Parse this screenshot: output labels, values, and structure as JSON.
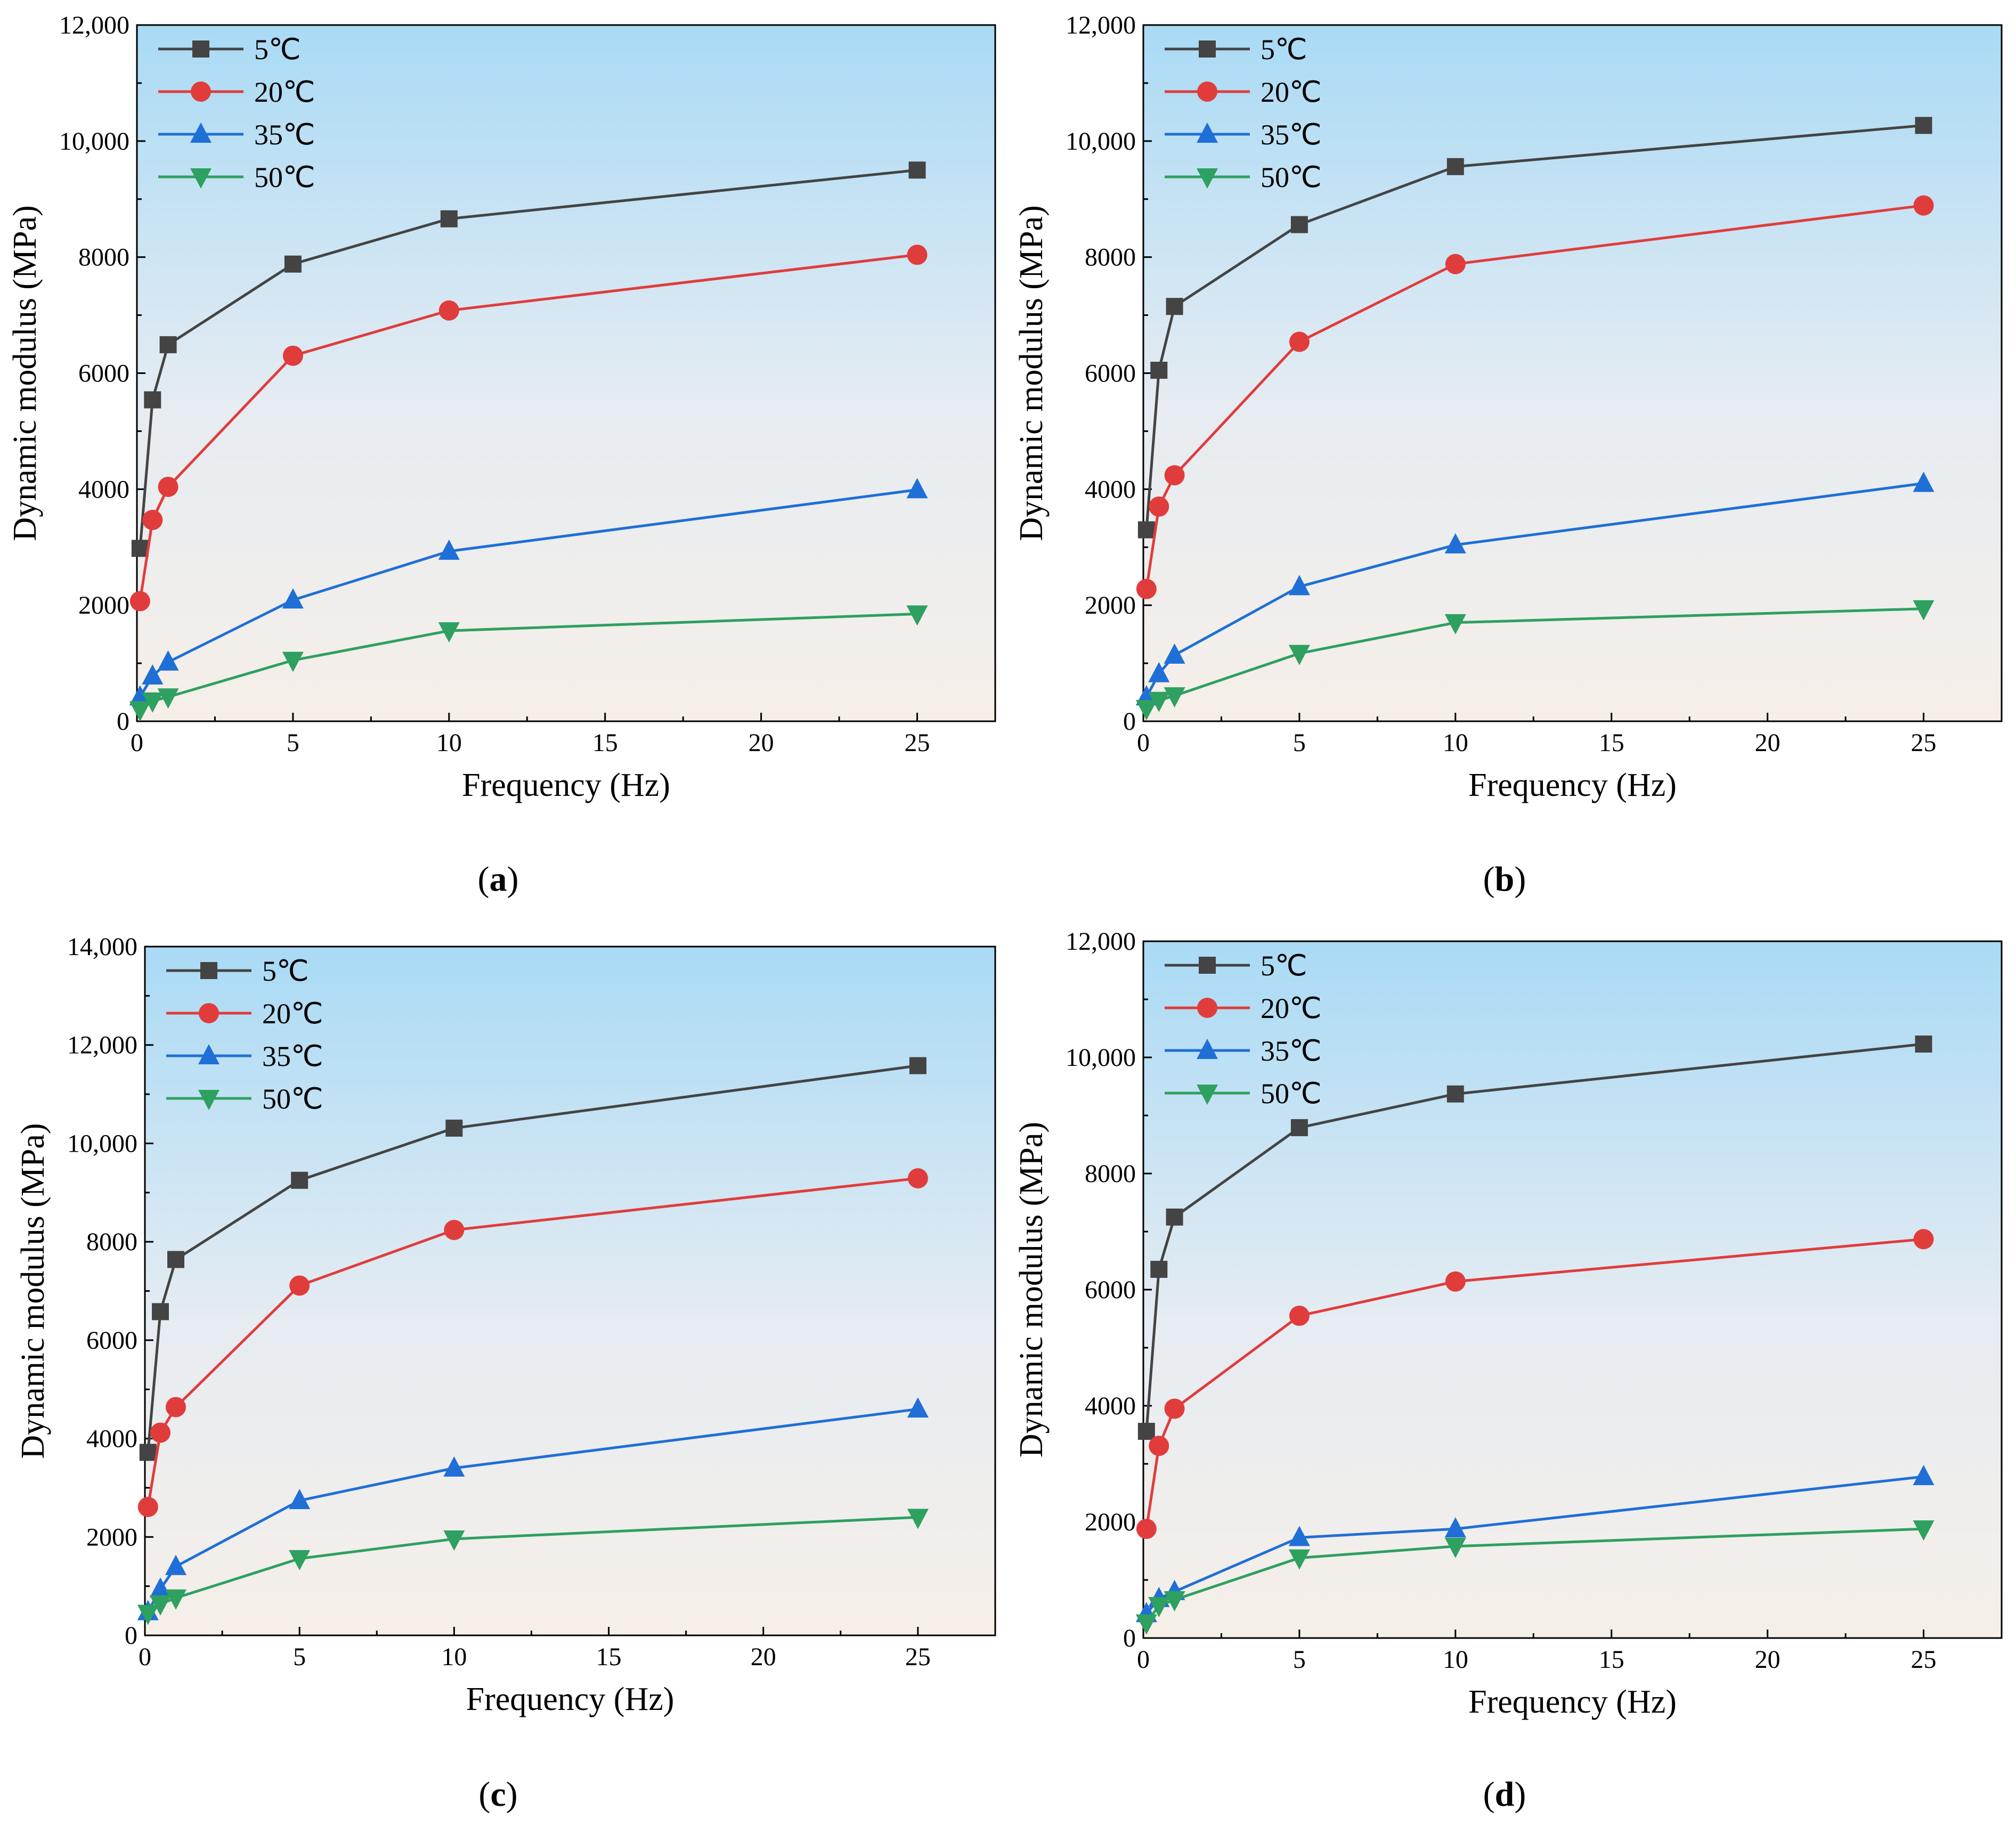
{
  "colors": {
    "5": "#444444",
    "20": "#e03c3c",
    "35": "#1f6fd6",
    "50": "#2ea060",
    "bg_top": "#a9daf5",
    "bg_bottom": "#f6efe8"
  },
  "chart_data": [
    {
      "panel": "a",
      "panel_label_open": "(",
      "panel_label_letter": "a",
      "panel_label_close": ")",
      "type": "line",
      "xlabel": "Frequency (Hz)",
      "ylabel": "Dynamic modulus (MPa)",
      "xlim": [
        0,
        27.5
      ],
      "ylim": [
        0,
        12000
      ],
      "xticks": [
        0,
        5,
        10,
        15,
        20,
        25
      ],
      "xtick_labels": [
        "0",
        "5",
        "10",
        "15",
        "20",
        "25"
      ],
      "yticks": [
        0,
        2000,
        4000,
        6000,
        8000,
        10000,
        12000
      ],
      "ytick_labels": [
        "0",
        "2000",
        "4000",
        "6000",
        "8000",
        "10,000",
        "12,000"
      ],
      "x": [
        0.1,
        0.5,
        1,
        5,
        10,
        25
      ],
      "series": [
        {
          "name": "5℃",
          "key": "5",
          "marker": "square",
          "values": [
            2980,
            5540,
            6490,
            7880,
            8660,
            9500
          ]
        },
        {
          "name": "20℃",
          "key": "20",
          "marker": "circle",
          "values": [
            2070,
            3470,
            4040,
            6300,
            7080,
            8040
          ]
        },
        {
          "name": "35℃",
          "key": "35",
          "marker": "triangle-up",
          "values": [
            420,
            780,
            1020,
            2090,
            2930,
            3990
          ]
        },
        {
          "name": "50℃",
          "key": "50",
          "marker": "triangle-down",
          "values": [
            200,
            350,
            420,
            1050,
            1560,
            1850
          ]
        }
      ]
    },
    {
      "panel": "b",
      "panel_label_open": "(",
      "panel_label_letter": "b",
      "panel_label_close": ")",
      "type": "line",
      "xlabel": "Frequency (Hz)",
      "ylabel": "Dynamic modulus (MPa)",
      "xlim": [
        0,
        27.5
      ],
      "ylim": [
        0,
        12000
      ],
      "xticks": [
        0,
        5,
        10,
        15,
        20,
        25
      ],
      "xtick_labels": [
        "0",
        "5",
        "10",
        "15",
        "20",
        "25"
      ],
      "yticks": [
        0,
        2000,
        4000,
        6000,
        8000,
        10000,
        12000
      ],
      "ytick_labels": [
        "0",
        "2000",
        "4000",
        "6000",
        "8000",
        "10,000",
        "12,000"
      ],
      "x": [
        0.1,
        0.5,
        1,
        5,
        10,
        25
      ],
      "series": [
        {
          "name": "5℃",
          "key": "5",
          "marker": "square",
          "values": [
            3300,
            6050,
            7150,
            8560,
            9560,
            10270
          ]
        },
        {
          "name": "20℃",
          "key": "20",
          "marker": "circle",
          "values": [
            2280,
            3700,
            4240,
            6540,
            7880,
            8890
          ]
        },
        {
          "name": "35℃",
          "key": "35",
          "marker": "triangle-up",
          "values": [
            420,
            820,
            1140,
            2320,
            3040,
            4100
          ]
        },
        {
          "name": "50℃",
          "key": "50",
          "marker": "triangle-down",
          "values": [
            220,
            360,
            440,
            1170,
            1700,
            1940
          ]
        }
      ]
    },
    {
      "panel": "c",
      "panel_label_open": "(",
      "panel_label_letter": "c",
      "panel_label_close": ")",
      "type": "line",
      "xlabel": "Frequency (Hz)",
      "ylabel": "Dynamic modulus (MPa)",
      "xlim": [
        0,
        27.5
      ],
      "ylim": [
        0,
        14000
      ],
      "xticks": [
        0,
        5,
        10,
        15,
        20,
        25
      ],
      "xtick_labels": [
        "0",
        "5",
        "10",
        "15",
        "20",
        "25"
      ],
      "yticks": [
        0,
        2000,
        4000,
        6000,
        8000,
        10000,
        12000,
        14000
      ],
      "ytick_labels": [
        "0",
        "2000",
        "4000",
        "6000",
        "8000",
        "10,000",
        "12,000",
        "14,000"
      ],
      "x": [
        0.1,
        0.5,
        1,
        5,
        10,
        25
      ],
      "series": [
        {
          "name": "5℃",
          "key": "5",
          "marker": "square",
          "values": [
            3720,
            6580,
            7640,
            9250,
            10310,
            11580
          ]
        },
        {
          "name": "20℃",
          "key": "20",
          "marker": "circle",
          "values": [
            2610,
            4120,
            4640,
            7110,
            8240,
            9290
          ]
        },
        {
          "name": "35℃",
          "key": "35",
          "marker": "triangle-up",
          "values": [
            480,
            940,
            1400,
            2740,
            3400,
            4600
          ]
        },
        {
          "name": "50℃",
          "key": "50",
          "marker": "triangle-down",
          "values": [
            450,
            640,
            760,
            1560,
            1960,
            2400
          ]
        }
      ]
    },
    {
      "panel": "d",
      "panel_label_open": "(",
      "panel_label_letter": "d",
      "panel_label_close": ")",
      "type": "line",
      "xlabel": "Frequency (Hz)",
      "ylabel": "Dynamic modulus (MPa)",
      "xlim": [
        0,
        27.5
      ],
      "ylim": [
        0,
        12000
      ],
      "xticks": [
        0,
        5,
        10,
        15,
        20,
        25
      ],
      "xtick_labels": [
        "0",
        "5",
        "10",
        "15",
        "20",
        "25"
      ],
      "yticks": [
        0,
        2000,
        4000,
        6000,
        8000,
        10000,
        12000
      ],
      "ytick_labels": [
        "0",
        "2000",
        "4000",
        "6000",
        "8000",
        "10,000",
        "12,000"
      ],
      "x": [
        0.1,
        0.5,
        1,
        5,
        10,
        25
      ],
      "series": [
        {
          "name": "5℃",
          "key": "5",
          "marker": "square",
          "values": [
            3560,
            6350,
            7250,
            8790,
            9370,
            10230
          ]
        },
        {
          "name": "20℃",
          "key": "20",
          "marker": "circle",
          "values": [
            1880,
            3310,
            3950,
            5550,
            6140,
            6870
          ]
        },
        {
          "name": "35℃",
          "key": "35",
          "marker": "triangle-up",
          "values": [
            420,
            680,
            800,
            1730,
            1880,
            2780
          ]
        },
        {
          "name": "50℃",
          "key": "50",
          "marker": "triangle-down",
          "values": [
            260,
            560,
            660,
            1380,
            1580,
            1880
          ]
        }
      ]
    }
  ]
}
